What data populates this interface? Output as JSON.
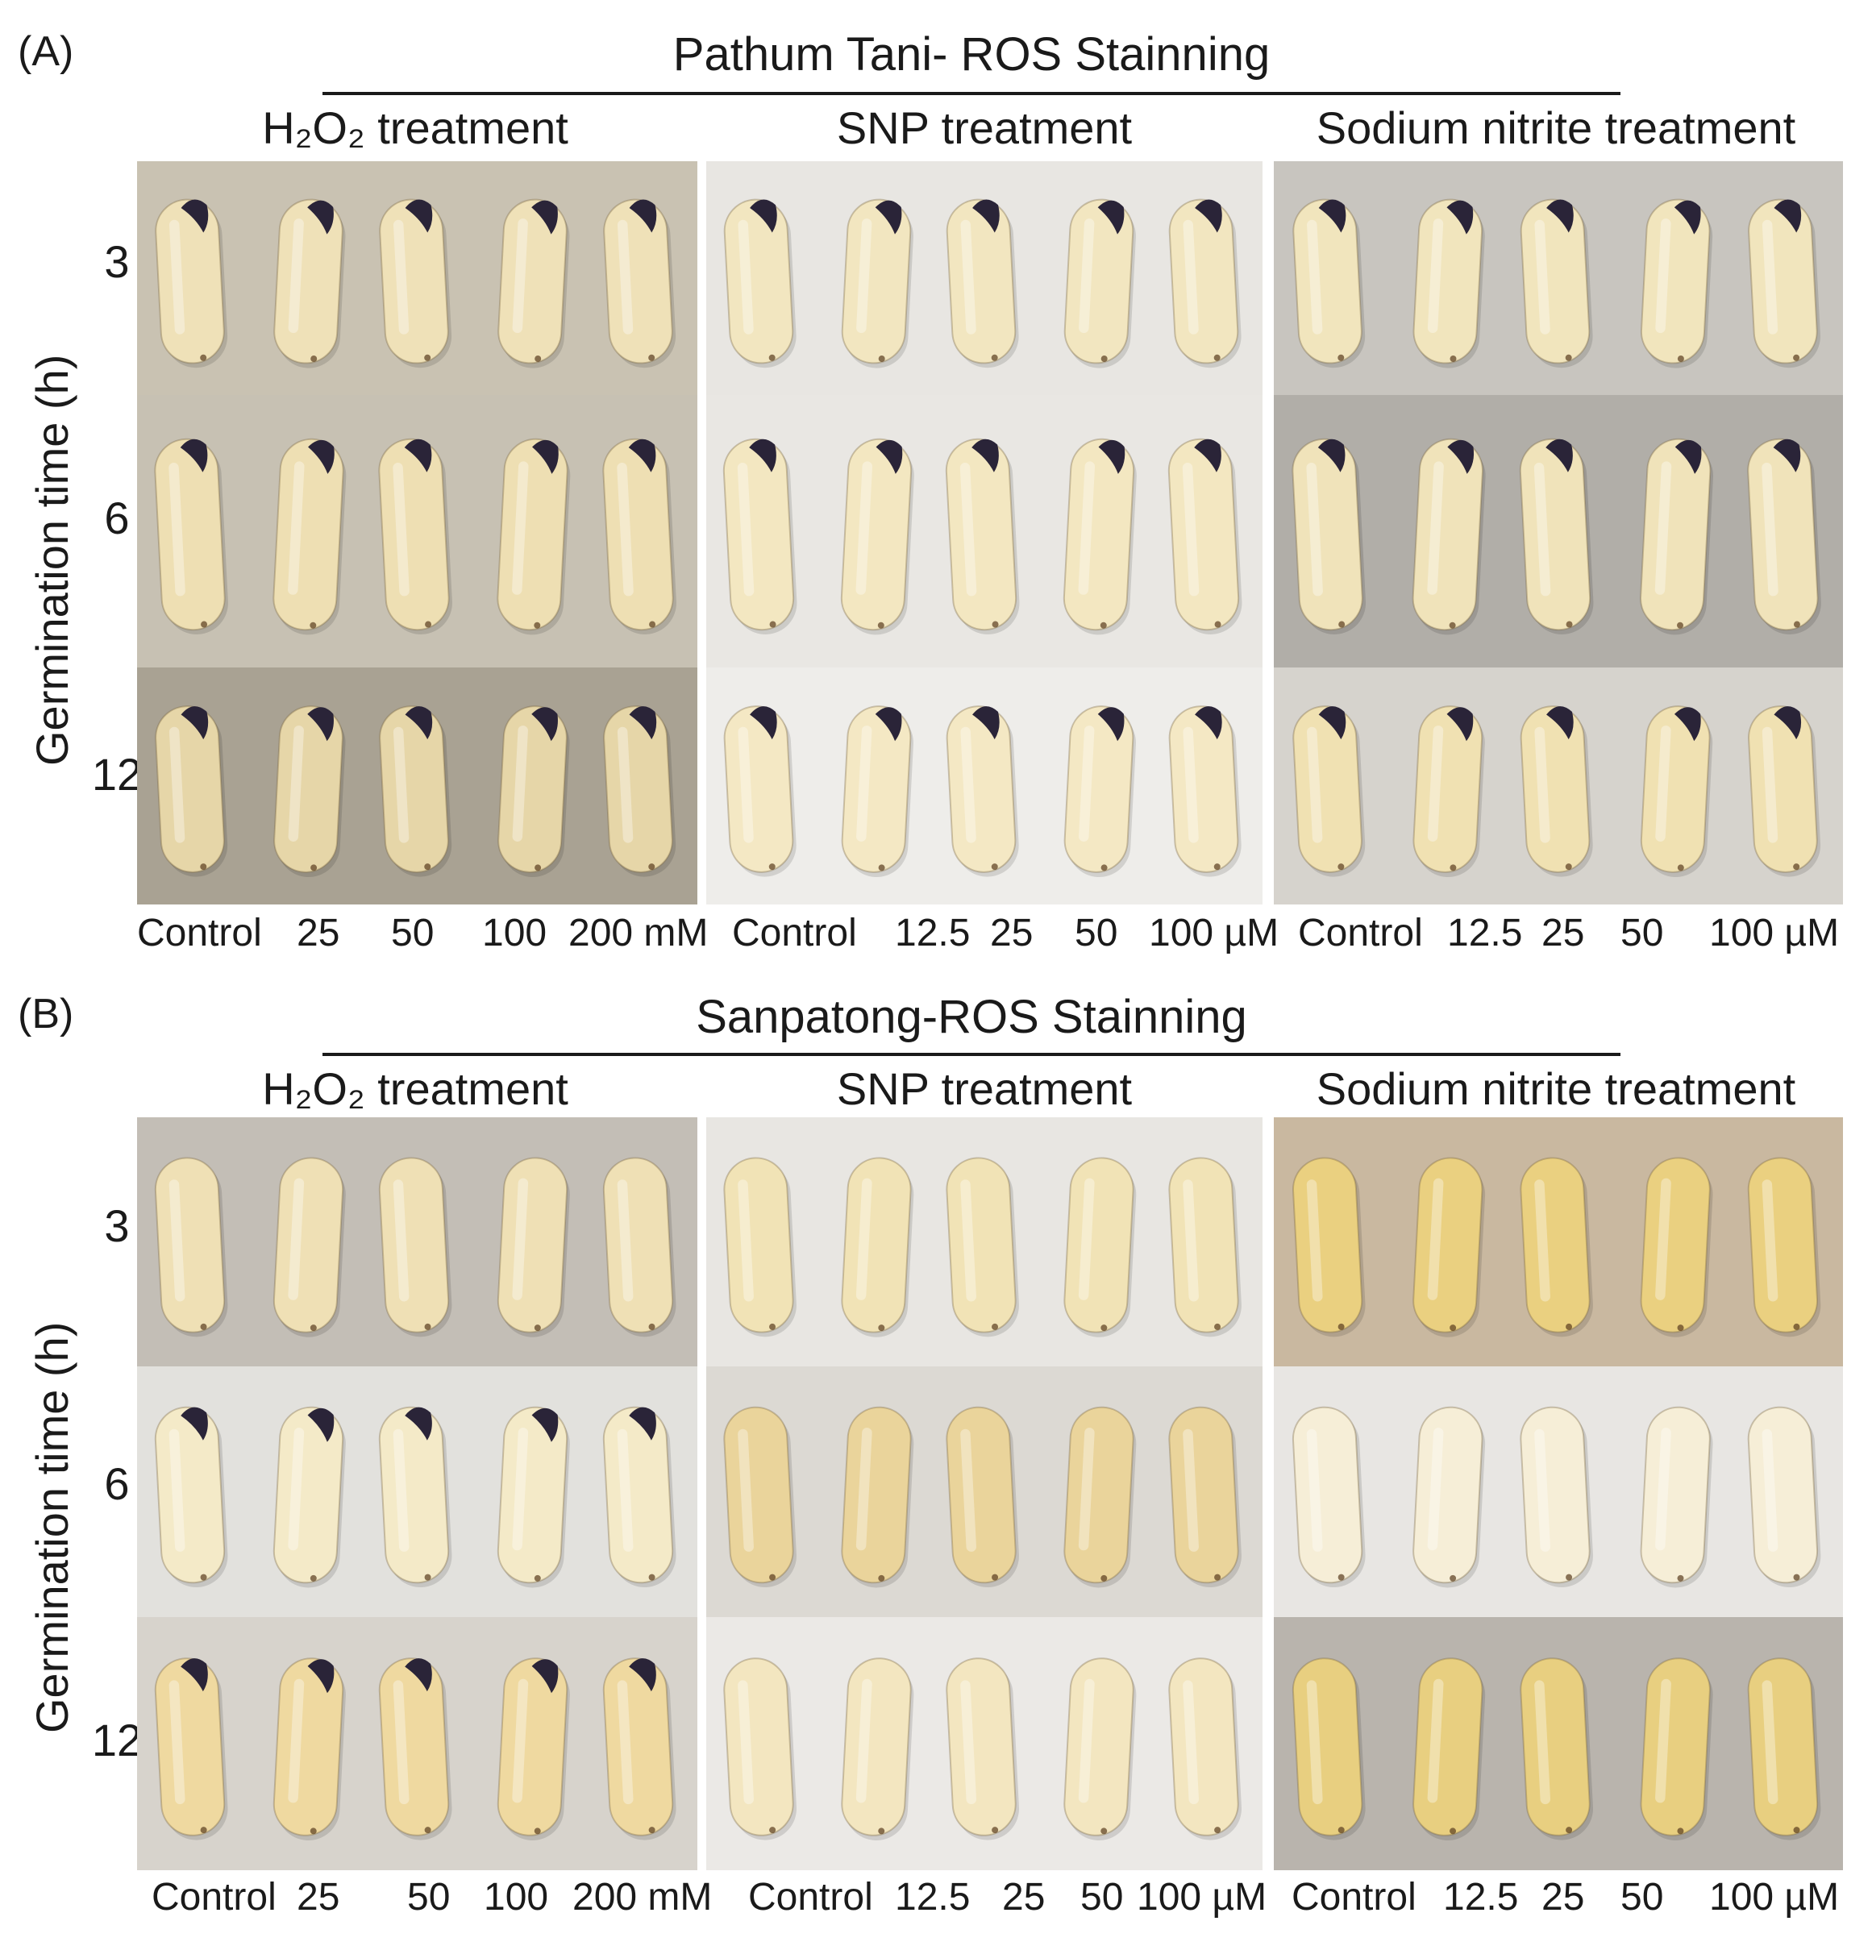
{
  "panels": [
    {
      "letter": "(A)",
      "title": "Pathum Tani- ROS Stainning",
      "ylabel": "Germination time (h)",
      "rows": [
        "3",
        "6",
        "12"
      ],
      "groups": [
        {
          "title": "H₂O₂ treatment",
          "concentrations": [
            "Control",
            "25",
            "50",
            "100",
            "200 mM"
          ]
        },
        {
          "title": "SNP treatment",
          "concentrations": [
            "Control",
            "12.5",
            "25",
            "50",
            "100 µM"
          ]
        },
        {
          "title": "Sodium nitrite treatment",
          "concentrations": [
            "Control",
            "12.5",
            "25",
            "50",
            "100 µM"
          ]
        }
      ]
    },
    {
      "letter": "(B)",
      "title": "Sanpatong-ROS Stainning",
      "ylabel": "Germination time (h)",
      "rows": [
        "3",
        "6",
        "12"
      ],
      "groups": [
        {
          "title": "H₂O₂ treatment",
          "concentrations": [
            "Control",
            "25",
            "50",
            "100",
            "200 mM"
          ]
        },
        {
          "title": "SNP treatment",
          "concentrations": [
            "Control",
            "12.5",
            "25",
            "50",
            "100 µM"
          ]
        },
        {
          "title": "Sodium nitrite treatment",
          "concentrations": [
            "Control",
            "12.5",
            "25",
            "50",
            "100 µM"
          ]
        }
      ]
    }
  ],
  "photo_colors": {
    "A": [
      [
        "#c9c2b2",
        "#e8e6e2",
        "#c8c5bf"
      ],
      [
        "#c7c1b3",
        "#e9e7e3",
        "#b1aea8"
      ],
      [
        "#a9a293",
        "#eeedea",
        "#d6d3cd"
      ]
    ],
    "B": [
      [
        "#c3beb6",
        "#e8e6e2",
        "#c9b8a0"
      ],
      [
        "#e2e1dd",
        "#dcd9d3",
        "#e8e6e3"
      ],
      [
        "#d7d3cc",
        "#ebe9e6",
        "#b9b4ad"
      ]
    ]
  },
  "seed_colors": {
    "A": [
      [
        "#efe1b8",
        "#f2e6c0",
        "#f1e5bd"
      ],
      [
        "#eedfb3",
        "#f3e7c1",
        "#f0e3ba"
      ],
      [
        "#e6d6a8",
        "#f4e8c4",
        "#f0e1b2"
      ]
    ],
    "B": [
      [
        "#efe0b5",
        "#f1e3b6",
        "#ead080"
      ],
      [
        "#f4eac8",
        "#ead49b",
        "#f6eed7"
      ],
      [
        "#efd9a0",
        "#f3e6c0",
        "#e8cf80"
      ]
    ]
  },
  "stained_tip": {
    "A": [
      [
        true,
        true,
        true
      ],
      [
        true,
        true,
        true
      ],
      [
        true,
        true,
        true
      ]
    ],
    "B": [
      [
        false,
        false,
        false
      ],
      [
        true,
        false,
        false
      ],
      [
        true,
        false,
        false
      ]
    ]
  }
}
